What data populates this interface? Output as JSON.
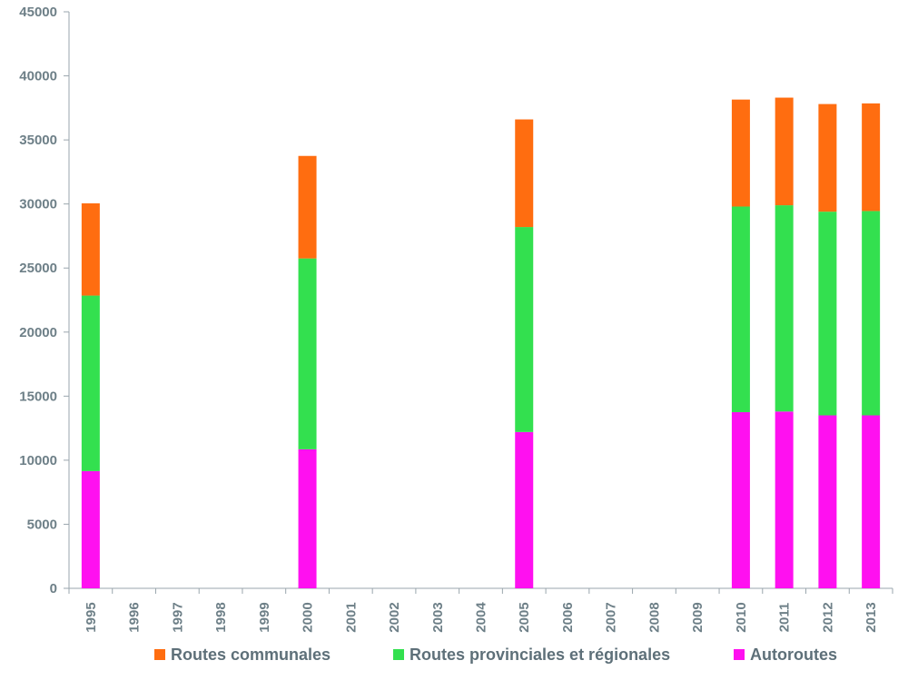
{
  "chart_data": {
    "type": "bar",
    "stacked": true,
    "title": "",
    "xlabel": "",
    "ylabel": "",
    "ylim": [
      0,
      45000
    ],
    "yticks": [
      0,
      5000,
      10000,
      15000,
      20000,
      25000,
      30000,
      35000,
      40000,
      45000
    ],
    "grid": false,
    "legend_position": "bottom",
    "categories": [
      "1995",
      "1996",
      "1997",
      "1998",
      "1999",
      "2000",
      "2001",
      "2002",
      "2003",
      "2004",
      "2005",
      "2006",
      "2007",
      "2008",
      "2009",
      "2010",
      "2011",
      "2012",
      "2013"
    ],
    "series": [
      {
        "name": "Autoroutes",
        "color": "#ff10f0",
        "values": [
          9150,
          null,
          null,
          null,
          null,
          10850,
          null,
          null,
          null,
          null,
          12200,
          null,
          null,
          null,
          null,
          13750,
          13800,
          13500,
          13500
        ]
      },
      {
        "name": "Routes provinciales et régionales",
        "color": "#33e04f",
        "values": [
          13700,
          null,
          null,
          null,
          null,
          14900,
          null,
          null,
          null,
          null,
          16000,
          null,
          null,
          null,
          null,
          16050,
          16100,
          15900,
          15950
        ]
      },
      {
        "name": "Routes communales",
        "color": "#ff6d10",
        "values": [
          7200,
          null,
          null,
          null,
          null,
          8000,
          null,
          null,
          null,
          null,
          8400,
          null,
          null,
          null,
          null,
          8350,
          8400,
          8400,
          8400
        ]
      }
    ],
    "legend_order": [
      "Routes communales",
      "Routes provinciales et régionales",
      "Autoroutes"
    ]
  }
}
